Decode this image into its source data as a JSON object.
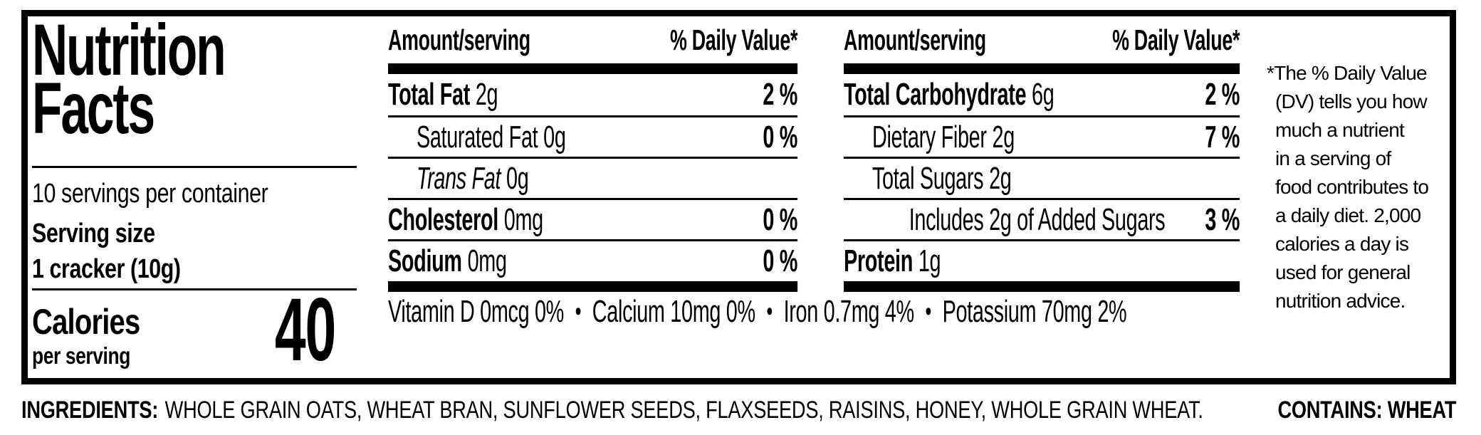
{
  "nutrition_label": {
    "title_line1": "Nutrition",
    "title_line2": "Facts",
    "servings_per_container": "10 servings per container",
    "serving_size_label": "Serving size",
    "serving_size_value": "1 cracker (10g)",
    "calories_label": "Calories",
    "calories_sublabel": "per serving",
    "calories_value": "40",
    "column_header_left": "Amount/serving",
    "column_header_right": "% Daily Value*",
    "columns": [
      {
        "rows": [
          {
            "name": "Total Fat",
            "amount": "2g",
            "dv": "2 %"
          },
          {
            "name": "Saturated Fat",
            "amount": "0g",
            "dv": "0 %"
          },
          {
            "name": "Trans Fat",
            "amount": "0g",
            "dv": ""
          },
          {
            "name": "Cholesterol",
            "amount": "0mg",
            "dv": "0 %"
          },
          {
            "name": "Sodium",
            "amount": "0mg",
            "dv": "0 %"
          }
        ]
      },
      {
        "rows": [
          {
            "name": "Total Carbohydrate",
            "amount": "6g",
            "dv": "2 %"
          },
          {
            "name": "Dietary Fiber",
            "amount": "2g",
            "dv": "7 %"
          },
          {
            "name": "Total Sugars",
            "amount": "2g",
            "dv": ""
          },
          {
            "name": "Includes 2g of Added Sugars",
            "amount": "",
            "dv": "3 %"
          },
          {
            "name": "Protein",
            "amount": "1g",
            "dv": ""
          }
        ]
      }
    ],
    "micronutrients": {
      "separator": "•",
      "items": [
        "Vitamin D 0mcg 0%",
        "Calcium 10mg 0%",
        "Iron 0.7mg 4%",
        "Potassium 70mg 2%"
      ]
    },
    "footnote": "*The % Daily Value\n(DV) tells you how\nmuch a nutrient\nin a serving of\nfood contributes to\na daily diet. 2,000\ncalories a day is\nused for general\nnutrition advice.",
    "colors": {
      "ink": "#000000",
      "background": "#ffffff"
    }
  },
  "ingredients": {
    "label": "INGREDIENTS:",
    "text": "WHOLE GRAIN OATS, WHEAT BRAN, SUNFLOWER SEEDS, FLAXSEEDS, RAISINS, HONEY, WHOLE GRAIN WHEAT.",
    "contains": "CONTAINS: WHEAT"
  }
}
